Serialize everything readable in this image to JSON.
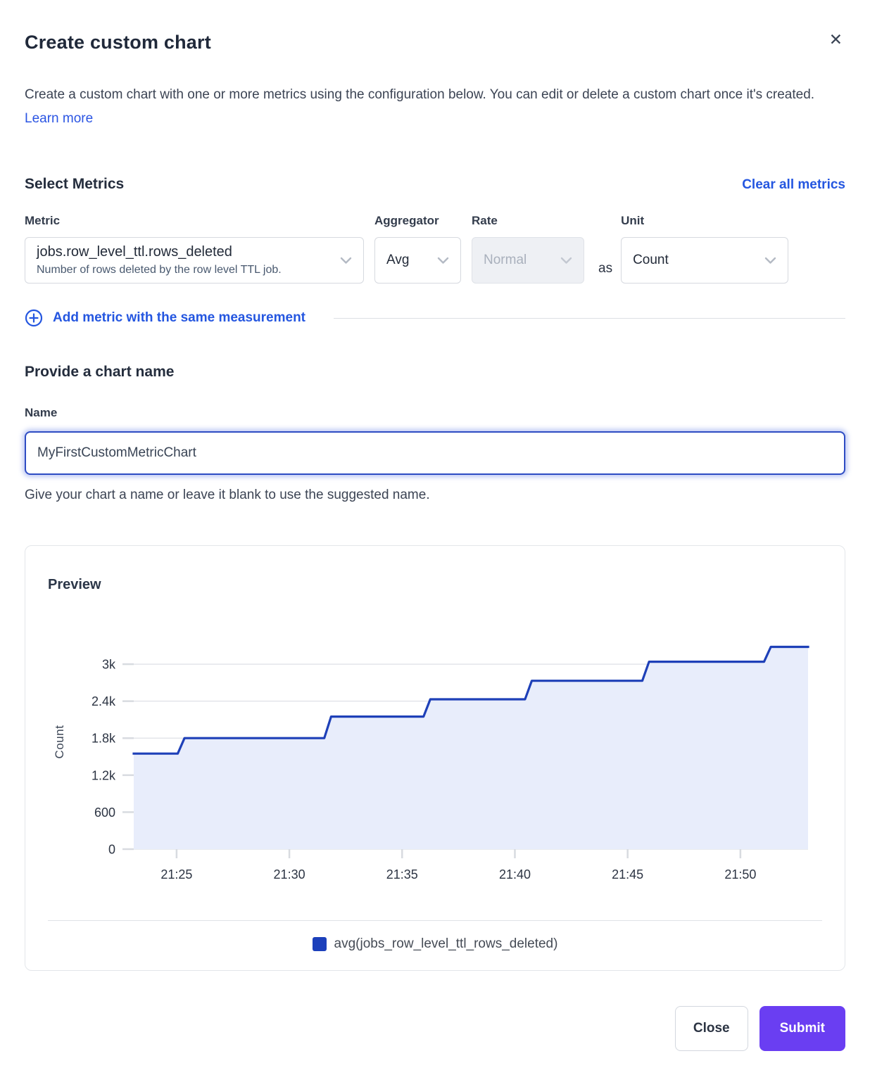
{
  "modal": {
    "title": "Create custom chart",
    "close_icon": "✕",
    "description": "Create a custom chart with one or more metrics using the configuration below. You can edit or delete a custom chart once it's created.",
    "learn_more_label": "Learn more"
  },
  "metrics_section": {
    "heading": "Select Metrics",
    "clear_all_label": "Clear all metrics",
    "metric_label": "Metric",
    "aggregator_label": "Aggregator",
    "rate_label": "Rate",
    "unit_label": "Unit",
    "metric_value": "jobs.row_level_ttl.rows_deleted",
    "metric_description": "Number of rows deleted by the row level TTL job.",
    "aggregator_value": "Avg",
    "rate_value": "Normal",
    "rate_disabled": true,
    "as_label": "as",
    "unit_value": "Count",
    "add_metric_label": "Add metric with the same measurement"
  },
  "name_section": {
    "heading": "Provide a chart name",
    "label": "Name",
    "value": "MyFirstCustomMetricChart",
    "helper": "Give your chart a name or leave it blank to use the suggested name."
  },
  "preview": {
    "heading": "Preview",
    "legend_label": "avg(jobs_row_level_ttl_rows_deleted)"
  },
  "footer": {
    "close_label": "Close",
    "submit_label": "Submit"
  },
  "colors": {
    "accent_blue": "#2b55e3",
    "link_bold_blue": "#2456e0",
    "submit_purple": "#6a3ef2",
    "line_blue": "#1e40b8",
    "legend_swatch_blue": "#1c40bb",
    "area_fill": "#e8edfb",
    "gridline": "#e3e5ea",
    "tick": "#d8dbe0",
    "axis_text": "#2c3443"
  },
  "chart_data": {
    "type": "area",
    "subtype": "step-line-with-area-fill",
    "title": "Preview",
    "xlabel": "",
    "ylabel": "Count",
    "series_name": "avg(jobs_row_level_ttl_rows_deleted)",
    "x_axis_unit": "time (21:MM)",
    "x_range_minutes": [
      23.1,
      53.0
    ],
    "ylim": [
      0,
      3480
    ],
    "x_tick_minutes": [
      25,
      30,
      35,
      40,
      45,
      50
    ],
    "x_tick_labels": [
      "21:25",
      "21:30",
      "21:35",
      "21:40",
      "21:45",
      "21:50"
    ],
    "y_tick_values": [
      0,
      600,
      1200,
      1800,
      2400,
      3000
    ],
    "y_tick_labels": [
      "0",
      "600",
      "1.2k",
      "1.8k",
      "2.4k",
      "3k"
    ],
    "grid": "horizontal-only",
    "legend_position": "bottom-center",
    "step": "after",
    "riser_minutes": 0.3,
    "points": [
      [
        23.1,
        1550
      ],
      [
        25.2,
        1800
      ],
      [
        31.7,
        2150
      ],
      [
        36.1,
        2430
      ],
      [
        40.6,
        2730
      ],
      [
        45.8,
        3040
      ],
      [
        51.2,
        3280
      ],
      [
        53.0,
        3280
      ]
    ]
  }
}
